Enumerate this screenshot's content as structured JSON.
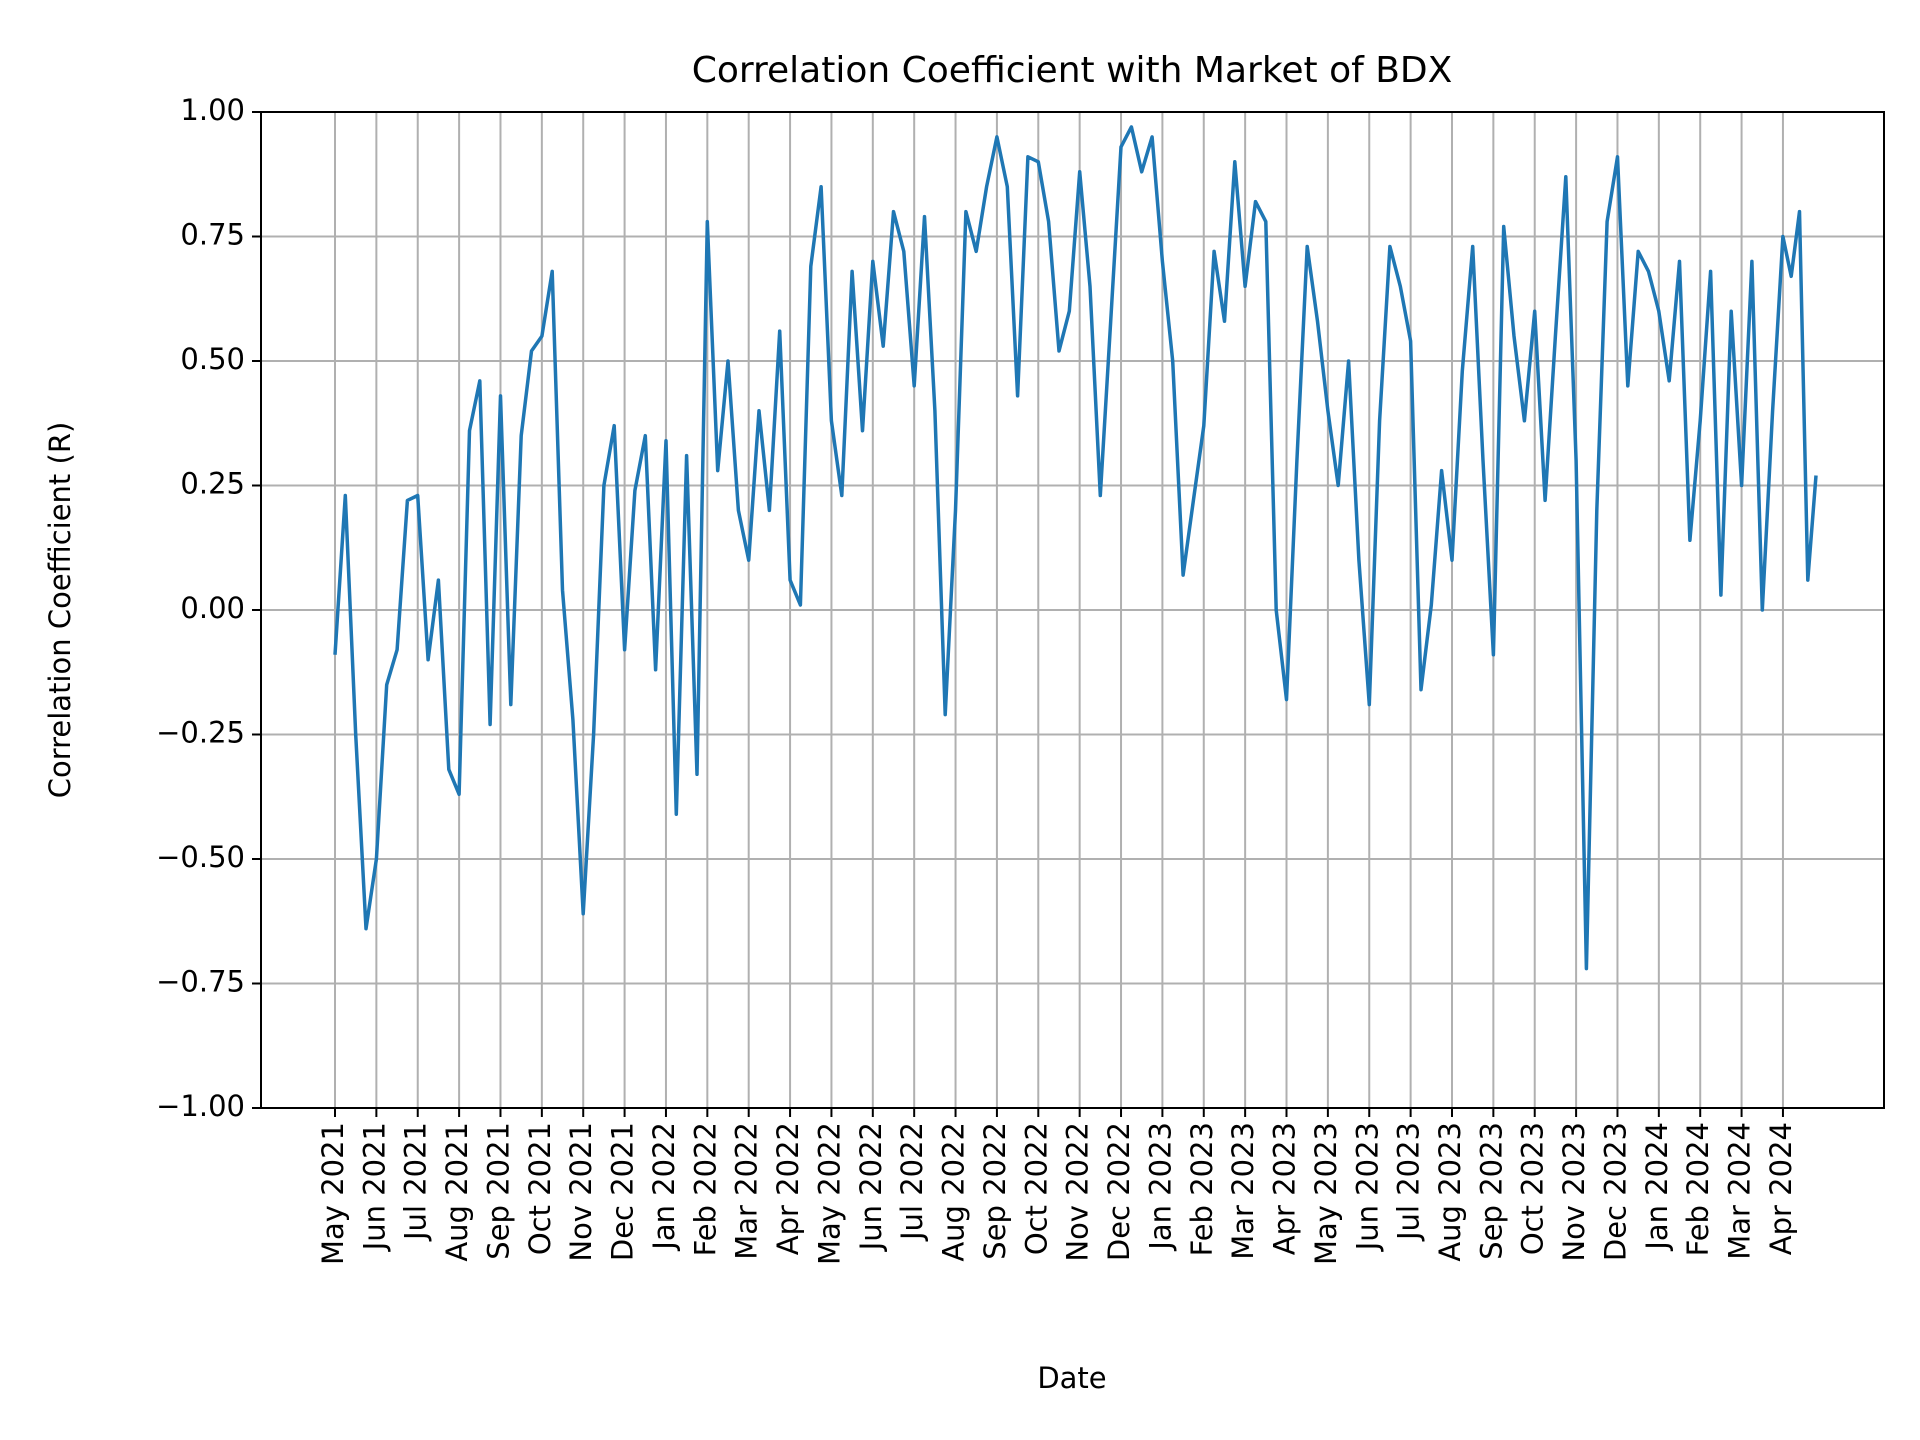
{
  "chart_data": {
    "type": "line",
    "title": "Correlation Coefficient with Market of BDX",
    "x_label": "Date",
    "y_label": "Correlation Coefficient (R)",
    "grid": true,
    "color": "#1f77b4",
    "xticks": [
      "May 2021",
      "Jun 2021",
      "Jul 2021",
      "Aug 2021",
      "Sep 2021",
      "Oct 2021",
      "Nov 2021",
      "Dec 2021",
      "Jan 2022",
      "Feb 2022",
      "Mar 2022",
      "Apr 2022",
      "May 2022",
      "Jun 2022",
      "Jul 2022",
      "Aug 2022",
      "Sep 2022",
      "Oct 2022",
      "Nov 2022",
      "Dec 2022",
      "Jan 2023",
      "Feb 2023",
      "Mar 2023",
      "Apr 2023",
      "May 2023",
      "Jun 2023",
      "Jul 2023",
      "Aug 2023",
      "Sep 2023",
      "Oct 2023",
      "Nov 2023",
      "Dec 2023",
      "Jan 2024",
      "Feb 2024",
      "Mar 2024",
      "Apr 2024"
    ],
    "ylim": [
      -1,
      1
    ],
    "yticks": [
      {
        "value": -1,
        "label": "−1.00"
      },
      {
        "value": -0.75,
        "label": "−0.75"
      },
      {
        "value": -0.5,
        "label": "−0.50"
      },
      {
        "value": -0.25,
        "label": "−0.25"
      },
      {
        "value": 0,
        "label": "0.00"
      },
      {
        "value": 0.25,
        "label": "0.25"
      },
      {
        "value": 0.5,
        "label": "0.50"
      },
      {
        "value": 0.75,
        "label": "0.75"
      },
      {
        "value": 1,
        "label": "1.00"
      }
    ],
    "x": [
      "May 2021",
      "May 2021",
      "May 2021",
      "May 2021",
      "Jun 2021",
      "Jun 2021",
      "Jun 2021",
      "Jun 2021",
      "Jul 2021",
      "Jul 2021",
      "Jul 2021",
      "Jul 2021",
      "Aug 2021",
      "Aug 2021",
      "Aug 2021",
      "Aug 2021",
      "Sep 2021",
      "Sep 2021",
      "Sep 2021",
      "Sep 2021",
      "Oct 2021",
      "Oct 2021",
      "Oct 2021",
      "Oct 2021",
      "Nov 2021",
      "Nov 2021",
      "Nov 2021",
      "Nov 2021",
      "Dec 2021",
      "Dec 2021",
      "Dec 2021",
      "Dec 2021",
      "Jan 2022",
      "Jan 2022",
      "Jan 2022",
      "Jan 2022",
      "Feb 2022",
      "Feb 2022",
      "Feb 2022",
      "Feb 2022",
      "Mar 2022",
      "Mar 2022",
      "Mar 2022",
      "Mar 2022",
      "Apr 2022",
      "Apr 2022",
      "Apr 2022",
      "Apr 2022",
      "May 2022",
      "May 2022",
      "May 2022",
      "May 2022",
      "Jun 2022",
      "Jun 2022",
      "Jun 2022",
      "Jun 2022",
      "Jul 2022",
      "Jul 2022",
      "Jul 2022",
      "Jul 2022",
      "Aug 2022",
      "Aug 2022",
      "Aug 2022",
      "Aug 2022",
      "Sep 2022",
      "Sep 2022",
      "Sep 2022",
      "Sep 2022",
      "Oct 2022",
      "Oct 2022",
      "Oct 2022",
      "Oct 2022",
      "Nov 2022",
      "Nov 2022",
      "Nov 2022",
      "Nov 2022",
      "Dec 2022",
      "Dec 2022",
      "Dec 2022",
      "Dec 2022",
      "Jan 2023",
      "Jan 2023",
      "Jan 2023",
      "Jan 2023",
      "Feb 2023",
      "Feb 2023",
      "Feb 2023",
      "Feb 2023",
      "Mar 2023",
      "Mar 2023",
      "Mar 2023",
      "Mar 2023",
      "Apr 2023",
      "Apr 2023",
      "Apr 2023",
      "Apr 2023",
      "May 2023",
      "May 2023",
      "May 2023",
      "May 2023",
      "Jun 2023",
      "Jun 2023",
      "Jun 2023",
      "Jun 2023",
      "Jul 2023",
      "Jul 2023",
      "Jul 2023",
      "Jul 2023",
      "Aug 2023",
      "Aug 2023",
      "Aug 2023",
      "Aug 2023",
      "Sep 2023",
      "Sep 2023",
      "Sep 2023",
      "Sep 2023",
      "Oct 2023",
      "Oct 2023",
      "Oct 2023",
      "Oct 2023",
      "Nov 2023",
      "Nov 2023",
      "Nov 2023",
      "Nov 2023",
      "Dec 2023",
      "Dec 2023",
      "Dec 2023",
      "Dec 2023",
      "Jan 2024",
      "Jan 2024",
      "Jan 2024",
      "Jan 2024",
      "Feb 2024",
      "Feb 2024",
      "Feb 2024",
      "Feb 2024",
      "Mar 2024",
      "Mar 2024",
      "Mar 2024",
      "Mar 2024",
      "Apr 2024",
      "Apr 2024",
      "Apr 2024",
      "Apr 2024",
      "Apr 2024"
    ],
    "values": [
      -0.09,
      0.23,
      -0.25,
      -0.64,
      -0.5,
      -0.15,
      -0.08,
      0.22,
      0.23,
      -0.1,
      0.06,
      -0.32,
      -0.37,
      0.36,
      0.46,
      -0.23,
      0.43,
      -0.19,
      0.35,
      0.52,
      0.55,
      0.68,
      0.04,
      -0.22,
      -0.61,
      -0.25,
      0.25,
      0.37,
      -0.08,
      0.24,
      0.35,
      -0.12,
      0.34,
      -0.41,
      0.31,
      -0.33,
      0.78,
      0.28,
      0.5,
      0.2,
      0.1,
      0.4,
      0.2,
      0.56,
      0.06,
      0.01,
      0.69,
      0.85,
      0.38,
      0.23,
      0.68,
      0.36,
      0.7,
      0.53,
      0.8,
      0.72,
      0.45,
      0.79,
      0.4,
      -0.21,
      0.2,
      0.8,
      0.72,
      0.85,
      0.95,
      0.85,
      0.43,
      0.91,
      0.9,
      0.78,
      0.52,
      0.6,
      0.88,
      0.65,
      0.23,
      0.58,
      0.93,
      0.97,
      0.88,
      0.95,
      0.7,
      0.5,
      0.07,
      0.22,
      0.37,
      0.72,
      0.58,
      0.9,
      0.65,
      0.82,
      0.78,
      0.0,
      -0.18,
      0.3,
      0.73,
      0.58,
      0.4,
      0.25,
      0.5,
      0.1,
      -0.19,
      0.38,
      0.73,
      0.65,
      0.54,
      -0.16,
      0.01,
      0.28,
      0.1,
      0.48,
      0.73,
      0.3,
      -0.09,
      0.77,
      0.55,
      0.38,
      0.6,
      0.22,
      0.55,
      0.87,
      0.3,
      -0.72,
      0.2,
      0.78,
      0.91,
      0.45,
      0.72,
      0.68,
      0.6,
      0.46,
      0.7,
      0.14,
      0.38,
      0.68,
      0.03,
      0.6,
      0.25,
      0.7,
      0.0,
      0.4,
      0.75,
      0.67,
      0.8,
      0.06,
      0.27
    ]
  }
}
